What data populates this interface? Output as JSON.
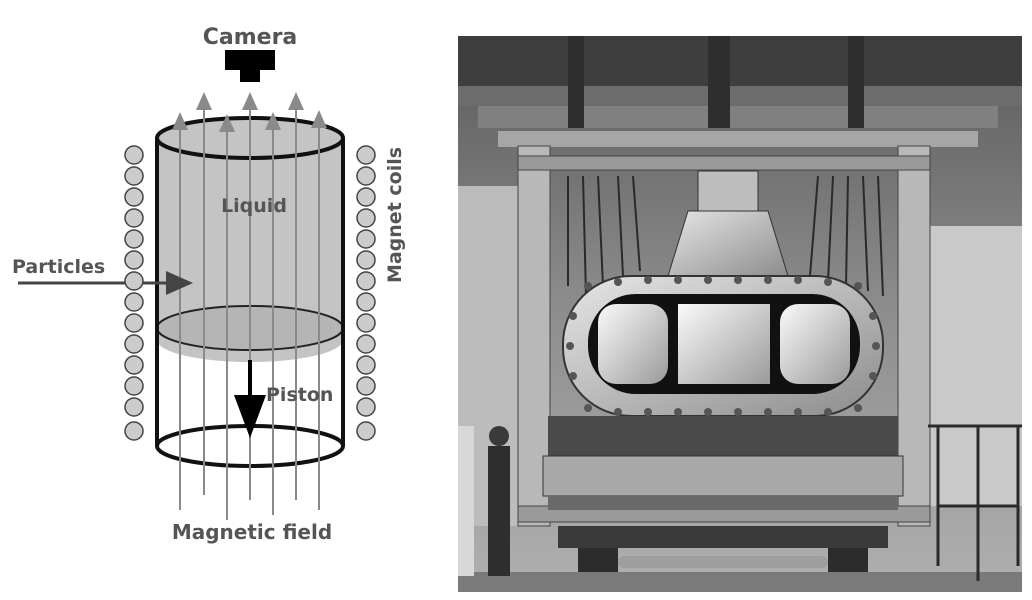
{
  "diagram": {
    "labels": {
      "camera": "Camera",
      "liquid": "Liquid",
      "particles": "Particles",
      "magnet_coils": "Magnet coils",
      "piston": "Piston",
      "magnetic_field": "Magnetic field"
    },
    "colors": {
      "liquid_fill": "#c4c4c4",
      "outline": "#111111",
      "field_lines": "#8a8a8a",
      "coils": "#cccccc",
      "text": "#555555"
    }
  },
  "photo": {
    "style": "grayscale photograph of bubble chamber apparatus in industrial hall"
  }
}
